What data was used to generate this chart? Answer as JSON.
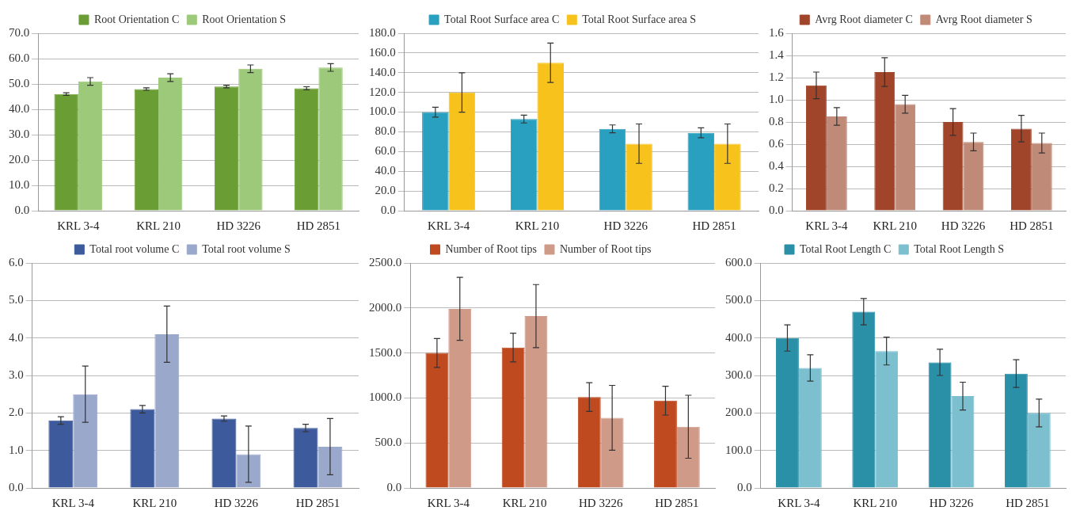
{
  "chart_data": [
    {
      "type": "bar",
      "categories": [
        "KRL 3-4",
        "KRL 210",
        "HD 3226",
        "HD 2851"
      ],
      "series": [
        {
          "name": "Root Orientation C",
          "color": "#6a9e34",
          "values": [
            46,
            48,
            49,
            48.3
          ],
          "errors": [
            0.5,
            0.5,
            0.5,
            0.6
          ]
        },
        {
          "name": "Root Orientation S",
          "color": "#9cc97a",
          "values": [
            51,
            52.5,
            56,
            56.5
          ],
          "errors": [
            1.5,
            1.5,
            1.5,
            1.5
          ]
        }
      ],
      "ylim": [
        0,
        70
      ],
      "yticks": [
        {
          "value": 0,
          "label": "0.0"
        },
        {
          "value": 10,
          "label": "10.0"
        },
        {
          "value": 20,
          "label": "20.0"
        },
        {
          "value": 30,
          "label": "30.0"
        },
        {
          "value": 40,
          "label": "40.0"
        },
        {
          "value": 50,
          "label": "50.0"
        },
        {
          "value": 60,
          "label": "60.0"
        },
        {
          "value": 70,
          "label": "70.0"
        }
      ],
      "grid": "y",
      "legend": "top"
    },
    {
      "type": "bar",
      "categories": [
        "KRL 3-4",
        "KRL 210",
        "HD 3226",
        "HD 2851"
      ],
      "series": [
        {
          "name": "Total Root Surface area C",
          "color": "#2aa0c0",
          "values": [
            100,
            93,
            83,
            79
          ],
          "errors": [
            5,
            4,
            4,
            5
          ]
        },
        {
          "name": "Total Root Surface area S",
          "color": "#f8c21c",
          "values": [
            120,
            150,
            68,
            68
          ],
          "errors": [
            20,
            20,
            20,
            20
          ]
        }
      ],
      "ylim": [
        0,
        180
      ],
      "yticks": [
        {
          "value": 0,
          "label": "0.0"
        },
        {
          "value": 20,
          "label": "20.0"
        },
        {
          "value": 40,
          "label": "40.0"
        },
        {
          "value": 60,
          "label": "60.0"
        },
        {
          "value": 80,
          "label": "80.0"
        },
        {
          "value": 100,
          "label": "100.0"
        },
        {
          "value": 120,
          "label": "120.0"
        },
        {
          "value": 140,
          "label": "140.0"
        },
        {
          "value": 160,
          "label": "160.0"
        },
        {
          "value": 180,
          "label": "180.0"
        }
      ],
      "grid": "y",
      "legend": "top"
    },
    {
      "type": "bar",
      "categories": [
        "KRL 3-4",
        "KRL 210",
        "HD 3226",
        "HD 2851"
      ],
      "series": [
        {
          "name": "Avrg Root diameter C",
          "color": "#a0452a",
          "values": [
            1.13,
            1.25,
            0.8,
            0.74
          ],
          "errors": [
            0.12,
            0.13,
            0.12,
            0.12
          ]
        },
        {
          "name": "Avrg Root diameter S",
          "color": "#c08a78",
          "values": [
            0.85,
            0.96,
            0.62,
            0.61
          ],
          "errors": [
            0.08,
            0.08,
            0.08,
            0.09
          ]
        }
      ],
      "ylim": [
        0,
        1.6
      ],
      "yticks": [
        {
          "value": 0,
          "label": "0.0"
        },
        {
          "value": 0.2,
          "label": "0.2"
        },
        {
          "value": 0.4,
          "label": "0.4"
        },
        {
          "value": 0.6,
          "label": "0.6"
        },
        {
          "value": 0.8,
          "label": "0.8"
        },
        {
          "value": 1,
          "label": "1.0"
        },
        {
          "value": 1.2,
          "label": "1.2"
        },
        {
          "value": 1.4,
          "label": "1.4"
        },
        {
          "value": 1.6,
          "label": "1.6"
        }
      ],
      "grid": "y",
      "legend": "top"
    },
    {
      "type": "bar",
      "categories": [
        "KRL 3-4",
        "KRL 210",
        "HD 3226",
        "HD 2851"
      ],
      "series": [
        {
          "name": "Total root volume C",
          "color": "#3c5a9c",
          "values": [
            1.8,
            2.1,
            1.85,
            1.6
          ],
          "errors": [
            0.1,
            0.1,
            0.07,
            0.1
          ]
        },
        {
          "name": "Total root volume S",
          "color": "#9aa8cc",
          "values": [
            2.5,
            4.1,
            0.9,
            1.1
          ],
          "errors": [
            0.75,
            0.75,
            0.75,
            0.75
          ]
        }
      ],
      "ylim": [
        0,
        6
      ],
      "yticks": [
        {
          "value": 0,
          "label": "0.0"
        },
        {
          "value": 1,
          "label": "1.0"
        },
        {
          "value": 2,
          "label": "2.0"
        },
        {
          "value": 3,
          "label": "3.0"
        },
        {
          "value": 4,
          "label": "4.0"
        },
        {
          "value": 5,
          "label": "5.0"
        },
        {
          "value": 6,
          "label": "6.0"
        }
      ],
      "grid": "y",
      "legend": "top"
    },
    {
      "type": "bar",
      "categories": [
        "KRL 3-4",
        "KRL 210",
        "HD 3226",
        "HD 2851"
      ],
      "series": [
        {
          "name": "Number of Root tips",
          "color": "#c04a20",
          "values": [
            1500,
            1560,
            1010,
            970
          ],
          "errors": [
            160,
            160,
            160,
            160
          ]
        },
        {
          "name": "Number of Root tips",
          "color": "#d09a88",
          "values": [
            1990,
            1910,
            780,
            680
          ],
          "errors": [
            350,
            350,
            360,
            350
          ]
        }
      ],
      "ylim": [
        0,
        2500
      ],
      "yticks": [
        {
          "value": 0,
          "label": "0.0"
        },
        {
          "value": 500,
          "label": "500.0"
        },
        {
          "value": 1000,
          "label": "1000.0"
        },
        {
          "value": 1500,
          "label": "1500.0"
        },
        {
          "value": 2000,
          "label": "2000.0"
        },
        {
          "value": 2500,
          "label": "2500.0"
        }
      ],
      "grid": "y",
      "legend": "top"
    },
    {
      "type": "bar",
      "categories": [
        "KRL 3-4",
        "KRL 210",
        "HD 3226",
        "HD 2851"
      ],
      "series": [
        {
          "name": "Total Root Length C",
          "color": "#2a90a8",
          "values": [
            400,
            470,
            335,
            305
          ],
          "errors": [
            35,
            35,
            35,
            37
          ]
        },
        {
          "name": "Total Root Length S",
          "color": "#7cc0d0",
          "values": [
            320,
            365,
            245,
            200
          ],
          "errors": [
            35,
            37,
            37,
            37
          ]
        }
      ],
      "ylim": [
        0,
        600
      ],
      "yticks": [
        {
          "value": 0,
          "label": "0.0"
        },
        {
          "value": 100,
          "label": "100.0"
        },
        {
          "value": 200,
          "label": "200.0"
        },
        {
          "value": 300,
          "label": "300.0"
        },
        {
          "value": 400,
          "label": "400.0"
        },
        {
          "value": 500,
          "label": "500.0"
        },
        {
          "value": 600,
          "label": "600.0"
        }
      ],
      "grid": "y",
      "legend": "top"
    }
  ]
}
